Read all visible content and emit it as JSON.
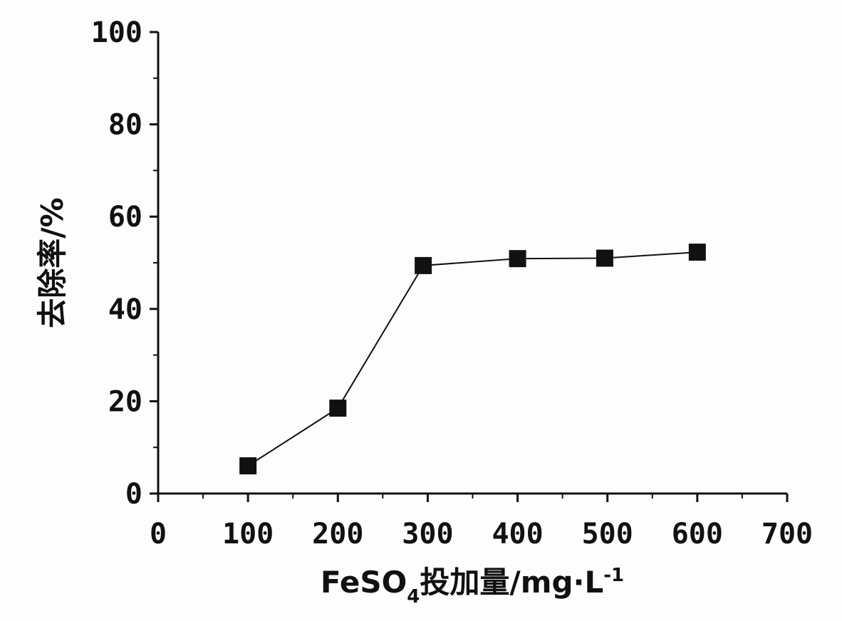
{
  "chart_data": {
    "type": "line",
    "x": [
      100,
      200,
      295,
      400,
      497,
      600
    ],
    "series": [
      {
        "values": [
          6,
          18.5,
          49.4,
          50.9,
          51.0,
          52.3
        ]
      }
    ],
    "xlim": [
      0,
      700
    ],
    "ylim": [
      0,
      100
    ],
    "xticks": [
      "0",
      "100",
      "200",
      "300",
      "400",
      "500",
      "600",
      "700"
    ],
    "yticks": [
      "0",
      "20",
      "40",
      "60",
      "80",
      "100"
    ],
    "xlabel": {
      "prefix": "FeSO",
      "subscript": "4",
      "rest": "投加量/mg·L",
      "superscript": "-1"
    },
    "ylabel": "去除率/%",
    "marker": "filled-square",
    "color": "#111111",
    "grid": false
  }
}
